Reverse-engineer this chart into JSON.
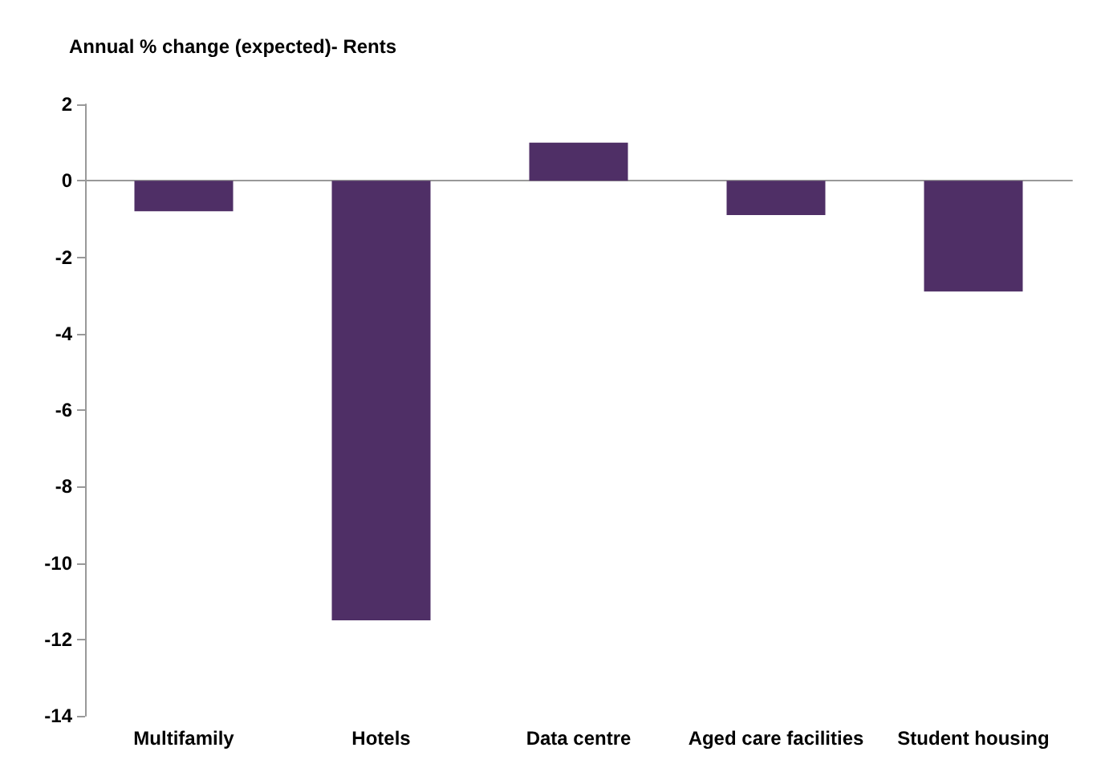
{
  "chart_data": {
    "type": "bar",
    "title": "Annual % change (expected)- Rents",
    "categories": [
      "Multifamily",
      "Hotels",
      "Data centre",
      "Aged care facilities",
      "Student housing"
    ],
    "values": [
      -0.8,
      -11.5,
      1.0,
      -0.9,
      -2.9
    ],
    "color": "#4f2f66",
    "ylim": [
      -14,
      2
    ],
    "yticks": [
      -14,
      -12,
      -10,
      -8,
      -6,
      -4,
      -2,
      0,
      2
    ]
  }
}
